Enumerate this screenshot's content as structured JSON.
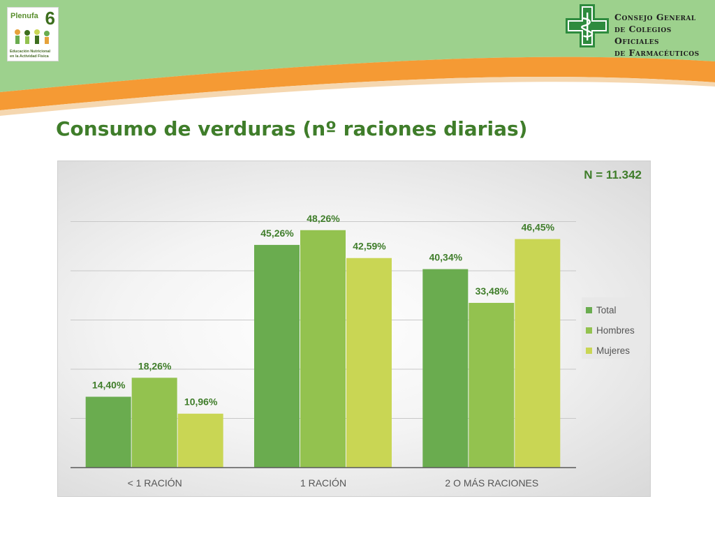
{
  "header": {
    "left_logo": {
      "brand": "Plenufa",
      "brand_number": "6",
      "caption_line1": "Educación Nutricional",
      "caption_line2": "en la Actividad Física"
    },
    "right_logo": {
      "line1": "Consejo General",
      "line2": "de Colegios Oficiales",
      "line3": "de Farmacéuticos"
    },
    "colors": {
      "green": "#9dd18d",
      "orange": "#f59a34",
      "dark_green": "#2e8b3e"
    }
  },
  "slide": {
    "title": "Consumo de verduras (nº raciones diarias)"
  },
  "chart_data": {
    "type": "bar",
    "title": "",
    "annotation": "N = 11.342",
    "categories": [
      "< 1 RACIÓN",
      "1 RACIÓN",
      "2 O MÁS RACIONES"
    ],
    "series": [
      {
        "name": "Total",
        "values": [
          14.4,
          45.26,
          40.34
        ],
        "labels": [
          "14,40%",
          "45,26%",
          "40,34%"
        ],
        "color": "#6aac4f"
      },
      {
        "name": "Hombres",
        "values": [
          18.26,
          48.26,
          33.48
        ],
        "labels": [
          "18,26%",
          "48,26%",
          "33,48%"
        ],
        "color": "#93c24f"
      },
      {
        "name": "Mujeres",
        "values": [
          10.96,
          42.59,
          46.45
        ],
        "labels": [
          "10,96%",
          "42,59%",
          "46,45%"
        ],
        "color": "#c9d654"
      }
    ],
    "ylim": [
      0,
      60
    ],
    "y_tick_step": 10,
    "grid": true,
    "xlabel": "",
    "ylabel": "",
    "legend_position": "right",
    "label_color": "#3f7d2a"
  }
}
